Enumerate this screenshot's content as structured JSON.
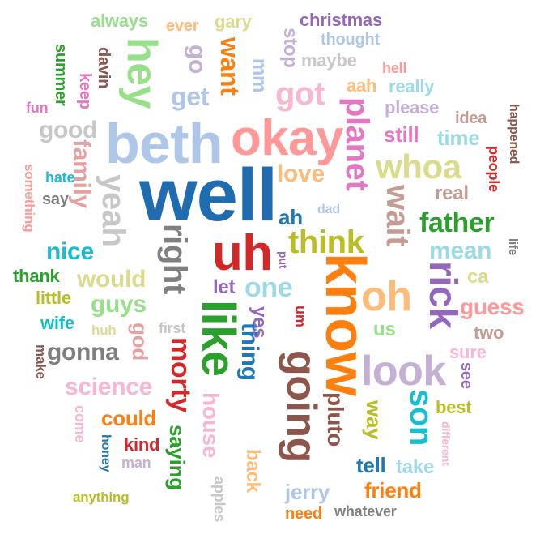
{
  "words": [
    {
      "text": "well",
      "color": "#1f6cb0"
    },
    {
      "text": "beth",
      "color": "#aec6e8"
    },
    {
      "text": "know",
      "color": "#ff7f0e"
    },
    {
      "text": "okay",
      "color": "#ff9896"
    },
    {
      "text": "uh",
      "color": "#d62728"
    },
    {
      "text": "like",
      "color": "#2ca02c"
    },
    {
      "text": "oh",
      "color": "#ffbb78"
    },
    {
      "text": "look",
      "color": "#c5b0d5"
    },
    {
      "text": "going",
      "color": "#8c564b"
    },
    {
      "text": "hey",
      "color": "#98df8a"
    },
    {
      "text": "rick",
      "color": "#9467bd"
    },
    {
      "text": "planet",
      "color": "#e377c2"
    },
    {
      "text": "wait",
      "color": "#c49c94"
    },
    {
      "text": "whoa",
      "color": "#dbdb8d"
    },
    {
      "text": "yeah",
      "color": "#c7c7c7"
    },
    {
      "text": "right",
      "color": "#7f7f7f"
    },
    {
      "text": "think",
      "color": "#bcbd22"
    },
    {
      "text": "got",
      "color": "#f7b6d2"
    },
    {
      "text": "father",
      "color": "#2ca02c"
    },
    {
      "text": "son",
      "color": "#17becf"
    },
    {
      "text": "morty",
      "color": "#d62728"
    },
    {
      "text": "one",
      "color": "#9edae5"
    },
    {
      "text": "thing",
      "color": "#1f77b4"
    },
    {
      "text": "family",
      "color": "#e7a0a0"
    },
    {
      "text": "science",
      "color": "#f7b6d2"
    },
    {
      "text": "get",
      "color": "#aec6e8"
    },
    {
      "text": "want",
      "color": "#ff7f0e"
    },
    {
      "text": "love",
      "color": "#ffbb78"
    },
    {
      "text": "mean",
      "color": "#9edae5"
    },
    {
      "text": "guys",
      "color": "#98df8a"
    },
    {
      "text": "would",
      "color": "#dbdb8d"
    },
    {
      "text": "nice",
      "color": "#17becf"
    },
    {
      "text": "gonna",
      "color": "#7f7f7f"
    },
    {
      "text": "good",
      "color": "#c7c7c7"
    },
    {
      "text": "house",
      "color": "#f7b6d2"
    },
    {
      "text": "could",
      "color": "#ff7f0e"
    },
    {
      "text": "pluto",
      "color": "#8c564b"
    },
    {
      "text": "guess",
      "color": "#ff9896"
    },
    {
      "text": "friend",
      "color": "#ff7f0e"
    },
    {
      "text": "tell",
      "color": "#1f77b4"
    },
    {
      "text": "time",
      "color": "#9edae5"
    },
    {
      "text": "still",
      "color": "#e377c2"
    },
    {
      "text": "real",
      "color": "#c49c94"
    },
    {
      "text": "ah",
      "color": "#1f77b4"
    },
    {
      "text": "saying",
      "color": "#2ca02c"
    },
    {
      "text": "back",
      "color": "#ffbb78"
    },
    {
      "text": "jerry",
      "color": "#aec6e8"
    },
    {
      "text": "way",
      "color": "#bcbd22"
    },
    {
      "text": "take",
      "color": "#9edae5"
    },
    {
      "text": "god",
      "color": "#e7a0a0"
    },
    {
      "text": "yes",
      "color": "#9467bd"
    },
    {
      "text": "kind",
      "color": "#d62728"
    },
    {
      "text": "sure",
      "color": "#f7b6d2"
    },
    {
      "text": "two",
      "color": "#c49c94"
    },
    {
      "text": "best",
      "color": "#bcbd22"
    },
    {
      "text": "christmas",
      "color": "#9467bd"
    },
    {
      "text": "always",
      "color": "#98df8a"
    },
    {
      "text": "ever",
      "color": "#ffbb78"
    },
    {
      "text": "gary",
      "color": "#dbdb8d"
    },
    {
      "text": "stop",
      "color": "#c5b0d5"
    },
    {
      "text": "thought",
      "color": "#aec6e8"
    },
    {
      "text": "maybe",
      "color": "#c7c7c7"
    },
    {
      "text": "mm",
      "color": "#aec6e8"
    },
    {
      "text": "go",
      "color": "#c5b0d5"
    },
    {
      "text": "davin",
      "color": "#8c564b"
    },
    {
      "text": "summer",
      "color": "#2ca02c"
    },
    {
      "text": "keep",
      "color": "#e377c2"
    },
    {
      "text": "fun",
      "color": "#e377c2"
    },
    {
      "text": "hell",
      "color": "#ff9896"
    },
    {
      "text": "aah",
      "color": "#ffbb78"
    },
    {
      "text": "really",
      "color": "#9edae5"
    },
    {
      "text": "please",
      "color": "#c5b0d5"
    },
    {
      "text": "idea",
      "color": "#c49c94"
    },
    {
      "text": "happened",
      "color": "#8c564b"
    },
    {
      "text": "people",
      "color": "#d62728"
    },
    {
      "text": "hate",
      "color": "#17becf"
    },
    {
      "text": "say",
      "color": "#7f7f7f"
    },
    {
      "text": "something",
      "color": "#ff9896"
    },
    {
      "text": "dad",
      "color": "#aec6e8"
    },
    {
      "text": "life",
      "color": "#7f7f7f"
    },
    {
      "text": "ca",
      "color": "#dbdb8d"
    },
    {
      "text": "thank",
      "color": "#2ca02c"
    },
    {
      "text": "little",
      "color": "#bcbd22"
    },
    {
      "text": "wife",
      "color": "#17becf"
    },
    {
      "text": "huh",
      "color": "#dbdb8d"
    },
    {
      "text": "first",
      "color": "#c7c7c7"
    },
    {
      "text": "let",
      "color": "#9467bd"
    },
    {
      "text": "put",
      "color": "#9467bd"
    },
    {
      "text": "um",
      "color": "#d62728"
    },
    {
      "text": "us",
      "color": "#98df8a"
    },
    {
      "text": "make",
      "color": "#8c564b"
    },
    {
      "text": "come",
      "color": "#f7b6d2"
    },
    {
      "text": "honey",
      "color": "#1f77b4"
    },
    {
      "text": "man",
      "color": "#c5b0d5"
    },
    {
      "text": "anything",
      "color": "#bcbd22"
    },
    {
      "text": "apples",
      "color": "#c7c7c7"
    },
    {
      "text": "need",
      "color": "#ff7f0e"
    },
    {
      "text": "whatever",
      "color": "#7f7f7f"
    },
    {
      "text": "different",
      "color": "#f7b6d2"
    },
    {
      "text": "see",
      "color": "#9467bd"
    }
  ]
}
